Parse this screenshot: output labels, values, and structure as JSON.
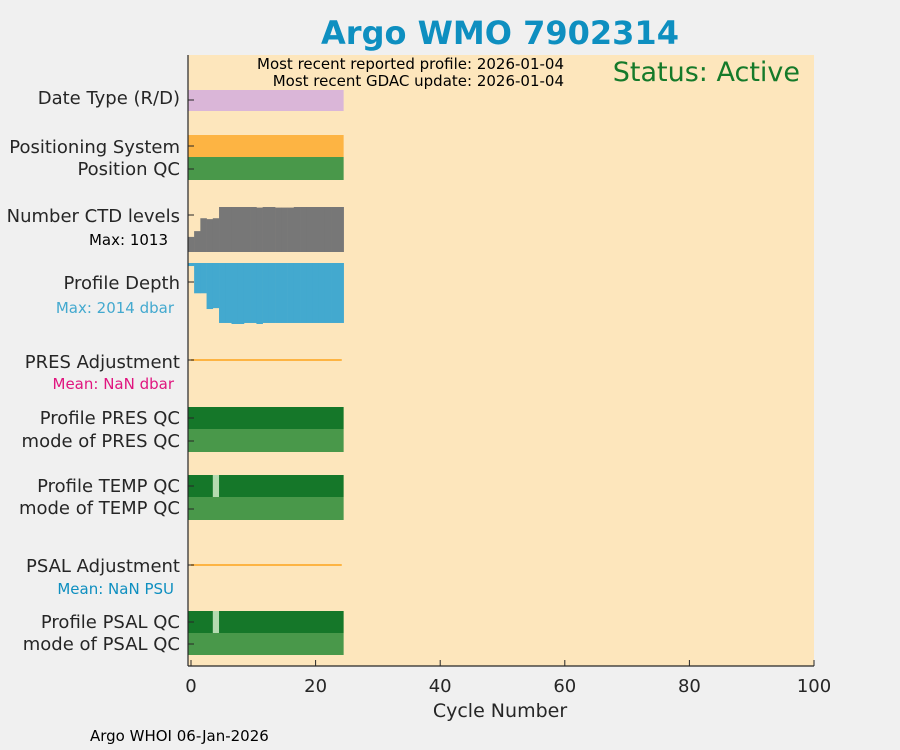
{
  "chart_data": {
    "type": "bar",
    "title": "Argo WMO 7902314",
    "xlabel": "Cycle Number",
    "xlim": [
      -0.5,
      100
    ],
    "xticks": [
      0,
      20,
      40,
      60,
      80,
      100
    ],
    "cycles": [
      0,
      1,
      2,
      3,
      4,
      5,
      6,
      7,
      8,
      9,
      10,
      11,
      12,
      13,
      14,
      15,
      16,
      17,
      18,
      19,
      20,
      21,
      22,
      23,
      24
    ],
    "most_recent_profile": "Most recent reported profile: 2026-01-04",
    "most_recent_gdac": "Most recent GDAC update: 2026-01-04",
    "status": "Status: Active",
    "footer": "Argo WHOI 06-Jan-2026",
    "row_labels": {
      "date_type": "Date Type (R/D)",
      "positioning": "Positioning System",
      "position_qc": "Position QC",
      "ctd_levels": "Number CTD levels",
      "ctd_max": "Max: 1013",
      "profile_depth": "Profile Depth",
      "depth_max": "Max: 2014 dbar",
      "pres_adj": "PRES Adjustment",
      "pres_mean": "Mean:  NaN dbar",
      "pres_qc": "Profile PRES QC",
      "pres_mode": "mode of PRES QC",
      "temp_qc": "Profile TEMP QC",
      "temp_mode": "mode of TEMP QC",
      "psal_adj": "PSAL Adjustment",
      "psal_mean": "Mean:  NaN PSU",
      "psal_qc": "Profile PSAL QC",
      "psal_mode": "mode of PSAL QC"
    },
    "ctd_levels": [
      340,
      470,
      760,
      740,
      760,
      1013,
      1013,
      1013,
      1013,
      1013,
      1013,
      1000,
      1013,
      1013,
      1000,
      1000,
      1000,
      1013,
      1013,
      1013,
      1013,
      1013,
      1013,
      1013,
      1013
    ],
    "ctd_max": 1013,
    "profile_depth": [
      100,
      1000,
      1000,
      1520,
      1490,
      1980,
      1980,
      2014,
      2014,
      1980,
      1980,
      2014,
      1980,
      1980,
      1980,
      1980,
      1980,
      1980,
      1980,
      1980,
      1980,
      1980,
      1980,
      1980,
      1980
    ],
    "depth_max": 2014,
    "temp_qc_flagged_cycles": [
      4
    ],
    "psal_qc_flagged_cycles": [
      4
    ],
    "colors": {
      "background": "#fde6bc",
      "title": "#0e8fc0",
      "status": "#157a2a",
      "date_type": "#dab6d8",
      "positioning": "#fdb443",
      "qc_good": "#49984a",
      "qc_profile": "#157729",
      "qc_flag": "#b5dbb0",
      "ctd": "#777777",
      "depth": "#43a9cf",
      "adjust_line": "#fdb443",
      "pres_mean": "#e0157f",
      "psal_mean": "#0e8fc0"
    }
  }
}
